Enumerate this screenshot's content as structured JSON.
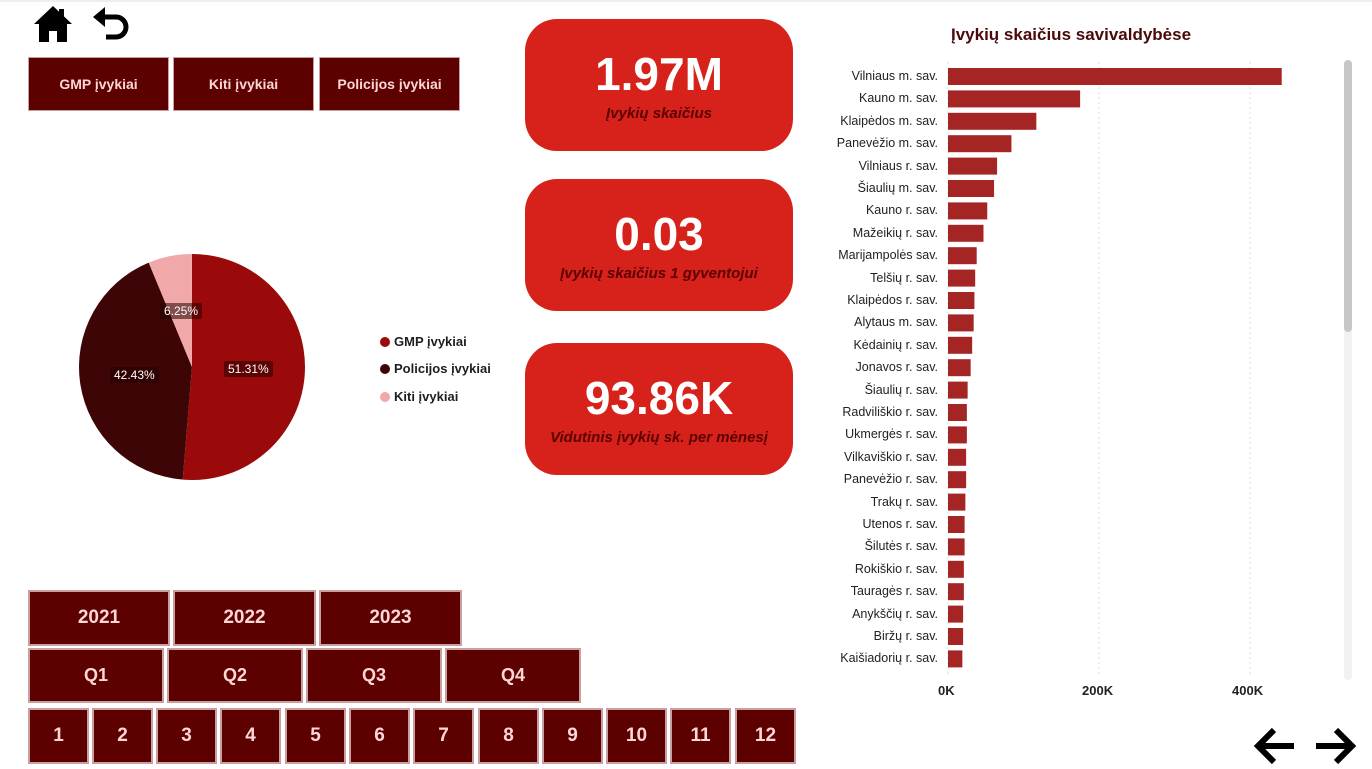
{
  "nav": {
    "home_icon": "home-icon",
    "back_icon": "undo-icon",
    "prev_icon": "arrow-left-icon",
    "next_icon": "arrow-right-icon"
  },
  "category_buttons": [
    "GMP įvykiai",
    "Kiti įvykiai",
    "Policijos įvykiai"
  ],
  "kpis": [
    {
      "value": "1.97M",
      "label": "Įvykių skaičius"
    },
    {
      "value": "0.03",
      "label": "Įvykių skaičius 1 gyventojui"
    },
    {
      "value": "93.86K",
      "label": "Vidutinis įvykių sk. per mėnesį"
    }
  ],
  "pie": {
    "slices": [
      {
        "name": "GMP įvykiai",
        "percent": 51.31,
        "label": "51.31%",
        "color": "#9b0a0a"
      },
      {
        "name": "Policijos įvykiai",
        "percent": 42.43,
        "label": "42.43%",
        "color": "#3d0505"
      },
      {
        "name": "Kiti įvykiai",
        "percent": 6.25,
        "label": "6.25%",
        "color": "#f0a8a8"
      }
    ]
  },
  "slicers": {
    "years": [
      "2021",
      "2022",
      "2023"
    ],
    "quarters": [
      "Q1",
      "Q2",
      "Q3",
      "Q4"
    ],
    "months": [
      "1",
      "2",
      "3",
      "4",
      "5",
      "6",
      "7",
      "8",
      "9",
      "10",
      "11",
      "12"
    ]
  },
  "chart_data": {
    "type": "bar",
    "orientation": "horizontal",
    "title": "Įvykių skaičius savivaldybėse",
    "bar_color": "#a52424",
    "categories": [
      "Vilniaus m. sav.",
      "Kauno m. sav.",
      "Klaipėdos m. sav.",
      "Panevėžio m. sav.",
      "Vilniaus r. sav.",
      "Šiaulių m. sav.",
      "Kauno r. sav.",
      "Mažeikių r. sav.",
      "Marijampolės sav.",
      "Telšių r. sav.",
      "Klaipėdos r. sav.",
      "Alytaus m. sav.",
      "Kėdainių r. sav.",
      "Jonavos r. sav.",
      "Šiaulių r. sav.",
      "Radviliškio r. sav.",
      "Ukmergės r. sav.",
      "Vilkaviškio r. sav.",
      "Panevėžio r. sav.",
      "Trakų r. sav.",
      "Utenos r. sav.",
      "Šilutės r. sav.",
      "Rokiškio r. sav.",
      "Tauragės r. sav.",
      "Anykščių r. sav.",
      "Biržų r. sav.",
      "Kaišiadorių r. sav."
    ],
    "values": [
      442000,
      175000,
      117000,
      84000,
      65000,
      61000,
      52000,
      47000,
      38000,
      36000,
      35000,
      34000,
      32000,
      30000,
      26000,
      25000,
      25000,
      24000,
      24000,
      23000,
      22000,
      22000,
      21000,
      21000,
      20000,
      20000,
      19000
    ],
    "xlim": [
      0,
      500000
    ],
    "xticks": [
      0,
      200000,
      400000
    ],
    "xtick_labels": [
      "0K",
      "200K",
      "400K"
    ],
    "grid": true
  }
}
